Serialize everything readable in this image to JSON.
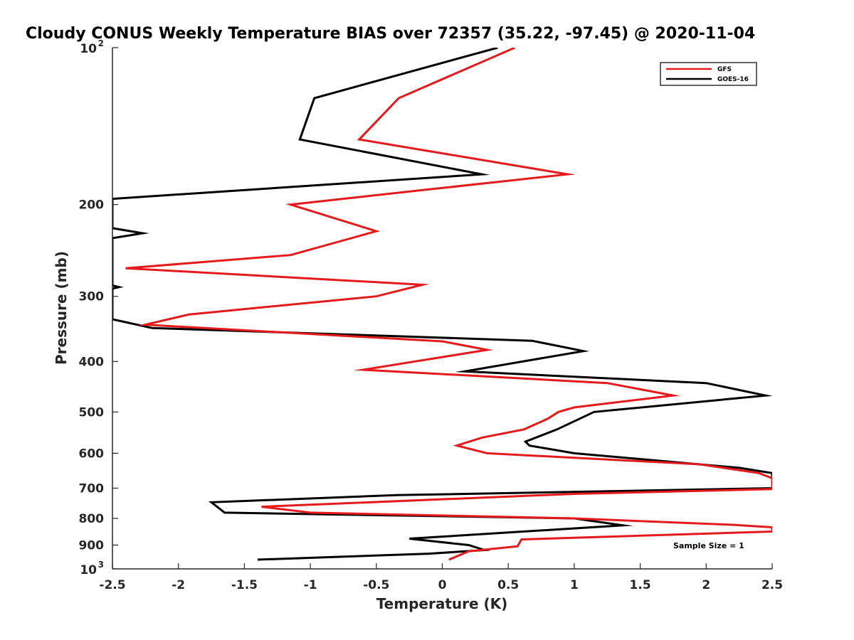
{
  "chart_data": {
    "type": "line",
    "title": "Cloudy CONUS Weekly Temperature BIAS over 72357 (35.22, -97.45) @ 2020-11-04",
    "xlabel": "Temperature (K)",
    "ylabel": "Pressure (mb)",
    "xlim": [
      -2.5,
      2.5
    ],
    "ylim": [
      100,
      1000
    ],
    "y_scale": "log",
    "y_reversed": true,
    "grid": false,
    "legend_position": "top-right",
    "x_ticks": [
      "-2.5",
      "-2",
      "-1.5",
      "-1",
      "-0.5",
      "0",
      "0.5",
      "1",
      "1.5",
      "2",
      "2.5"
    ],
    "y_ticks": [
      {
        "base": "10",
        "exp": "2",
        "value": 100
      },
      {
        "base": "200",
        "exp": "",
        "value": 200
      },
      {
        "base": "300",
        "exp": "",
        "value": 300
      },
      {
        "base": "400",
        "exp": "",
        "value": 400
      },
      {
        "base": "500",
        "exp": "",
        "value": 500
      },
      {
        "base": "600",
        "exp": "",
        "value": 600
      },
      {
        "base": "700",
        "exp": "",
        "value": 700
      },
      {
        "base": "800",
        "exp": "",
        "value": 800
      },
      {
        "base": "900",
        "exp": "",
        "value": 900
      },
      {
        "base": "10",
        "exp": "3",
        "value": 1000
      }
    ],
    "annotation": "Sample Size = 1",
    "series": [
      {
        "name": "GFS",
        "color": "#e41a1c",
        "points": [
          [
            0.55,
            100
          ],
          [
            -0.33,
            125
          ],
          [
            -0.63,
            150
          ],
          [
            0.95,
            175
          ],
          [
            -0.1,
            187
          ],
          [
            -1.15,
            200
          ],
          [
            -0.5,
            225
          ],
          [
            -1.15,
            250
          ],
          [
            -2.4,
            265
          ],
          [
            -0.15,
            285
          ],
          [
            -0.5,
            300
          ],
          [
            -1.92,
            325
          ],
          [
            -2.25,
            340
          ],
          [
            0,
            366
          ],
          [
            0.34,
            380
          ],
          [
            -0.6,
            415
          ],
          [
            1.25,
            440
          ],
          [
            1.75,
            465
          ],
          [
            1.0,
            490
          ],
          [
            0.88,
            500
          ],
          [
            0.8,
            515
          ],
          [
            0.62,
            540
          ],
          [
            0.3,
            560
          ],
          [
            0.11,
            580
          ],
          [
            0.34,
            600
          ],
          [
            1.95,
            630
          ],
          [
            2.4,
            655
          ],
          [
            2.5,
            670
          ],
          [
            2.5,
            703
          ],
          [
            1.0,
            718
          ],
          [
            -1.37,
            760
          ],
          [
            -1.0,
            780
          ],
          [
            1.0,
            800
          ],
          [
            2.2,
            823
          ],
          [
            2.5,
            832
          ],
          [
            2.5,
            848
          ],
          [
            0.6,
            878
          ],
          [
            0.57,
            905
          ],
          [
            0.2,
            925
          ],
          [
            0.05,
            960
          ]
        ]
      },
      {
        "name": "GOES-16",
        "color": "#000000",
        "points": [
          [
            0.42,
            100
          ],
          [
            -0.97,
            125
          ],
          [
            -1.08,
            150
          ],
          [
            0.3,
            175
          ],
          [
            -2.5,
            195
          ],
          [
            -2.5,
            222
          ],
          [
            -2.27,
            227
          ],
          [
            -2.5,
            232
          ],
          [
            -2.5,
            286
          ],
          [
            -2.45,
            288
          ],
          [
            -2.5,
            290
          ],
          [
            -2.5,
            332
          ],
          [
            -2.2,
            345
          ],
          [
            0.68,
            365
          ],
          [
            1.07,
            382
          ],
          [
            0.17,
            418
          ],
          [
            2.0,
            440
          ],
          [
            2.45,
            465
          ],
          [
            1.15,
            500
          ],
          [
            0.87,
            540
          ],
          [
            0.63,
            570
          ],
          [
            0.66,
            580
          ],
          [
            1.0,
            600
          ],
          [
            2.25,
            640
          ],
          [
            2.5,
            655
          ],
          [
            2.5,
            700
          ],
          [
            -0.35,
            722
          ],
          [
            -1.75,
            745
          ],
          [
            -1.65,
            780
          ],
          [
            1.0,
            800
          ],
          [
            1.37,
            825
          ],
          [
            0.45,
            853
          ],
          [
            -0.25,
            875
          ],
          [
            0.2,
            900
          ],
          [
            0.32,
            920
          ],
          [
            -0.1,
            935
          ],
          [
            -1.4,
            960
          ]
        ]
      }
    ]
  }
}
